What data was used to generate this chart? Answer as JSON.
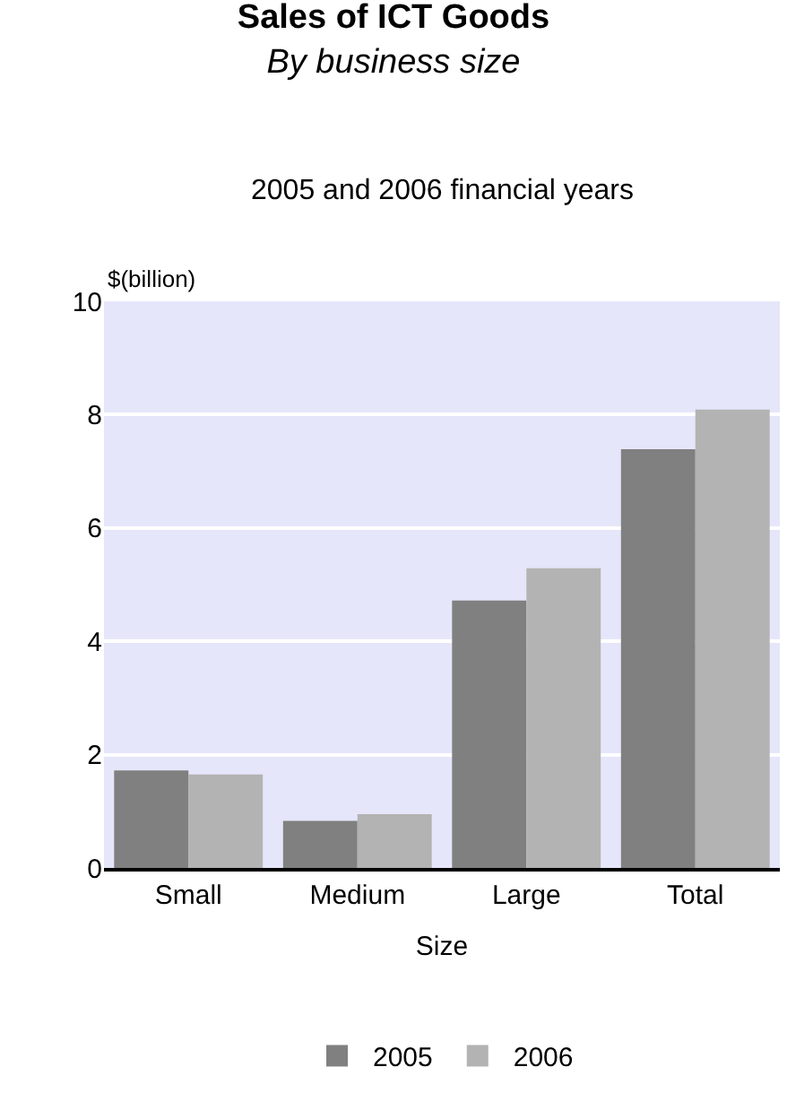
{
  "chart_data": {
    "type": "bar",
    "title": "Sales of ICT Goods",
    "subtitle": "By business size",
    "annotations": [
      "2005 and 2006 financial years"
    ],
    "xlabel": "Size",
    "ylabel": "$(billion)",
    "categories": [
      "Small",
      "Medium",
      "Large",
      "Total"
    ],
    "series": [
      {
        "name": "2005",
        "color": "#808080",
        "values": [
          1.72,
          0.83,
          4.72,
          7.39
        ]
      },
      {
        "name": "2006",
        "color": "#b3b3b3",
        "values": [
          1.65,
          0.95,
          5.29,
          8.09
        ]
      }
    ],
    "ylim": [
      0,
      10
    ],
    "yticks": [
      0,
      2,
      4,
      6,
      8,
      10
    ],
    "grid": "y",
    "legend": "bottom"
  }
}
